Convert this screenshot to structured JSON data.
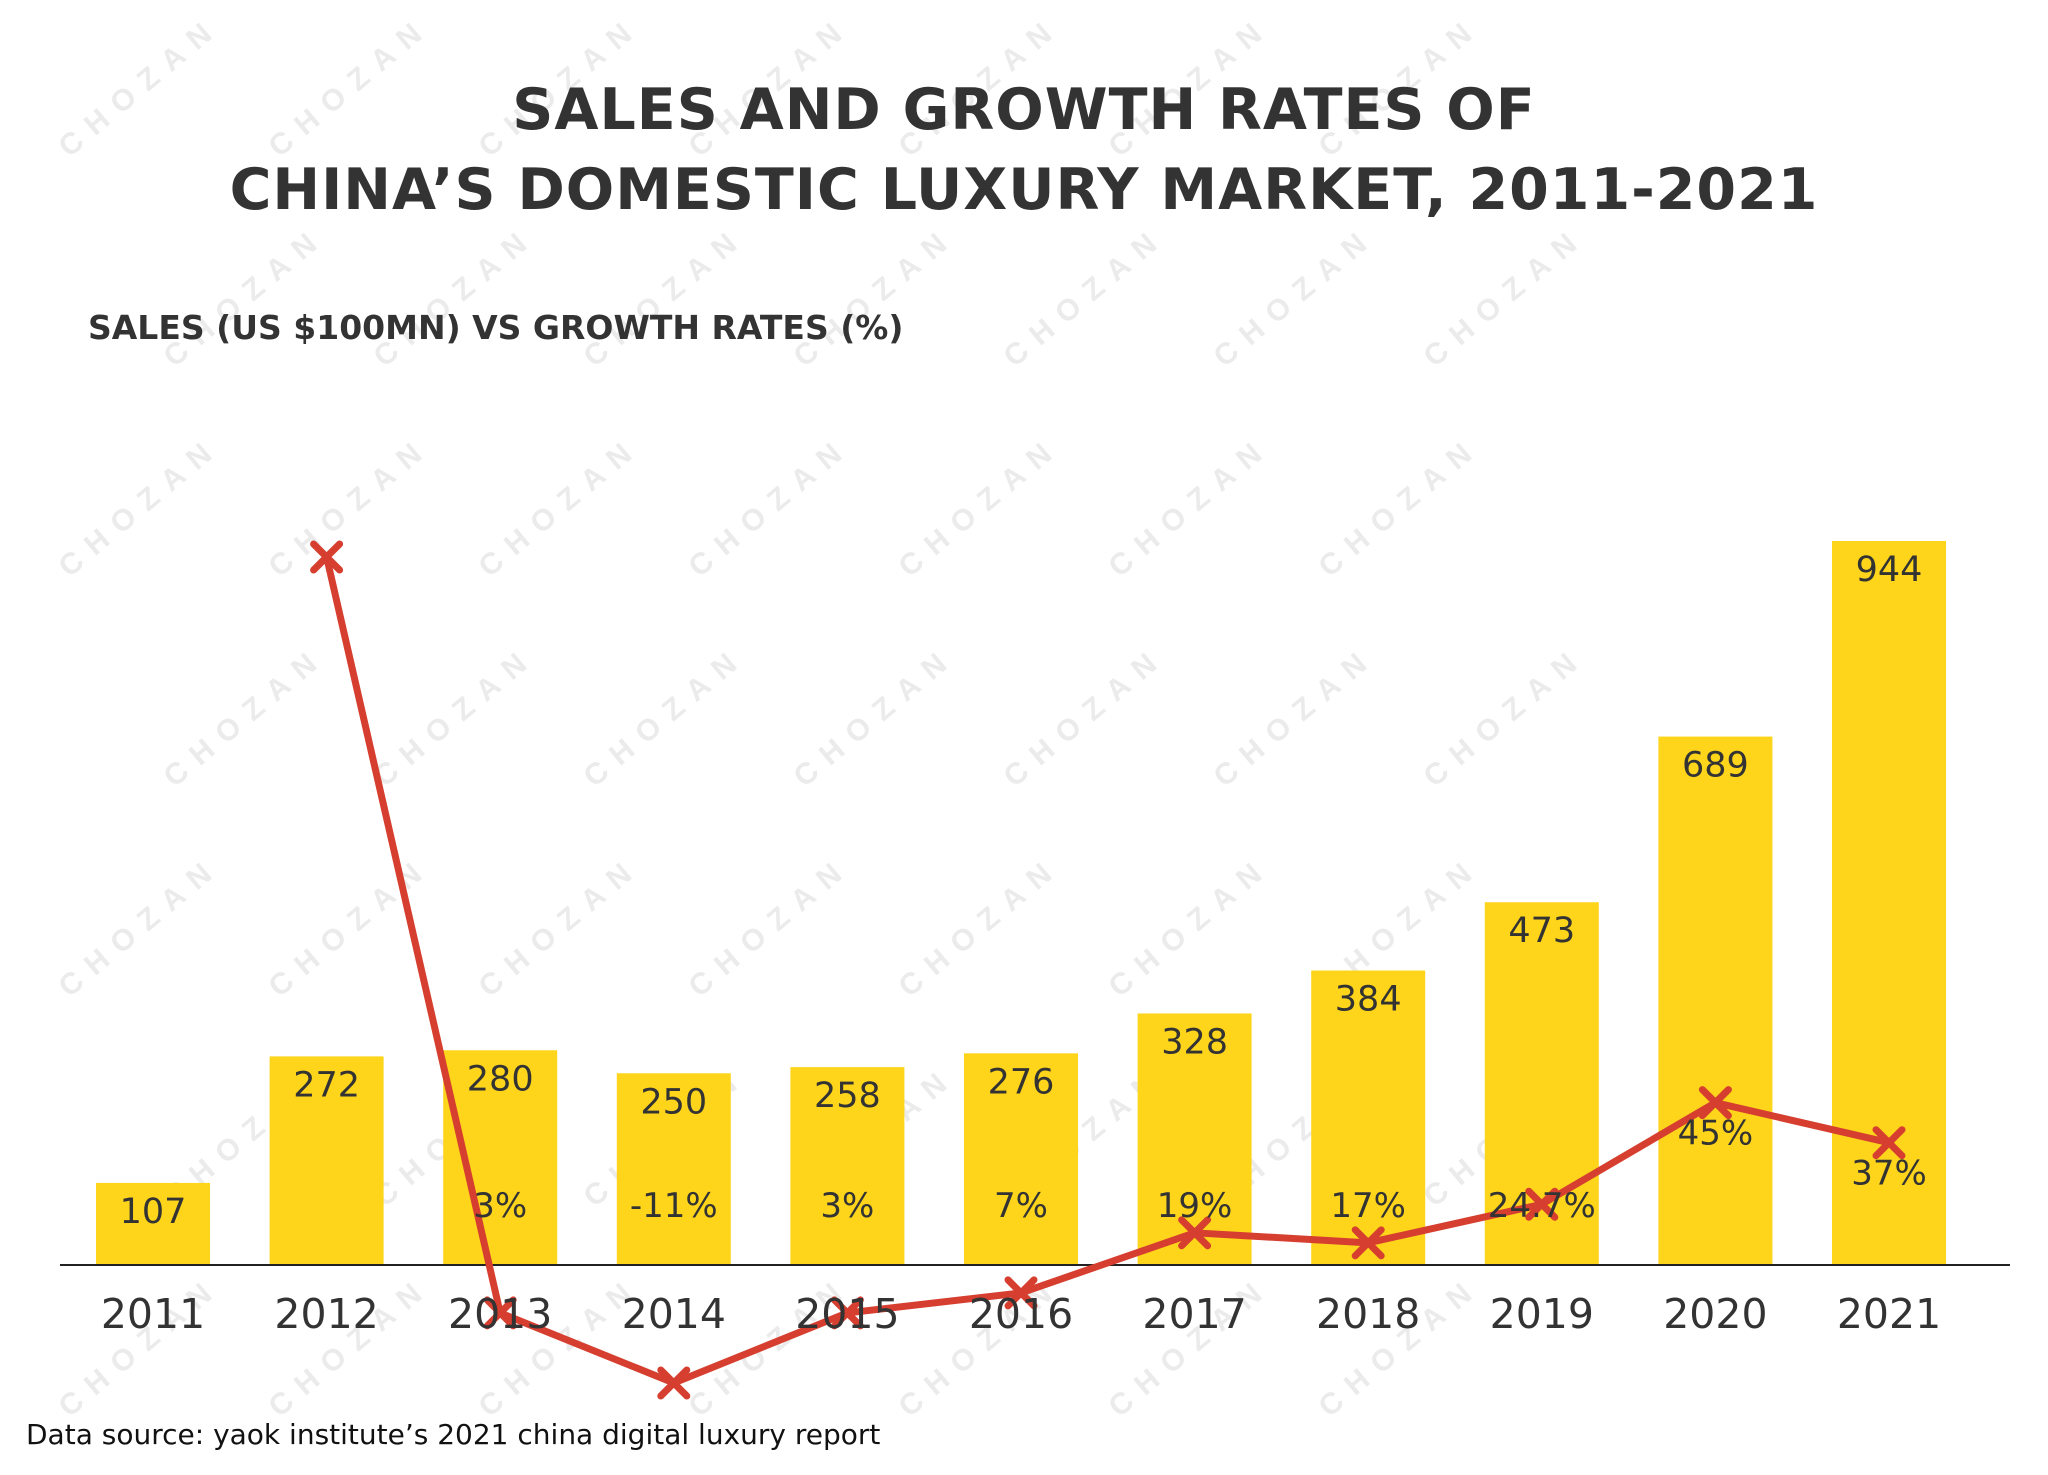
{
  "title_line1": "SALES AND GROWTH RATES OF",
  "title_line2": "CHINA’S DOMESTIC LUXURY MARKET, 2011-2021",
  "subtitle": "SALES (US $100MN) VS GROWTH RATES (%)",
  "source": "Data source: yaok institute’s 2021 china digital luxury report",
  "watermark_text": "CHOZAN",
  "colors": {
    "bar": "#fed51b",
    "line": "#d63f2f",
    "text": "#333333",
    "axis": "#222222"
  },
  "chart_data": {
    "type": "bar",
    "title": "SALES AND GROWTH RATES OF CHINA’S DOMESTIC LUXURY MARKET, 2011-2021",
    "subtitle": "SALES (US $100MN) VS GROWTH RATES (%)",
    "categories": [
      "2011",
      "2012",
      "2013",
      "2014",
      "2015",
      "2016",
      "2017",
      "2018",
      "2019",
      "2020",
      "2021"
    ],
    "series": [
      {
        "type": "bar",
        "values": [
          107,
          272,
          280,
          250,
          258,
          276,
          328,
          384,
          473,
          689,
          944
        ],
        "labels": [
          "107",
          "272",
          "280",
          "250",
          "258",
          "276",
          "328",
          "384",
          "473",
          "689",
          "944"
        ]
      },
      {
        "type": "line",
        "marker": "x",
        "values": [
          null,
          154,
          3,
          -11,
          3,
          7,
          19,
          17,
          24.7,
          45,
          37
        ],
        "labels": [
          "",
          "",
          "3%",
          "-11%",
          "3%",
          "7%",
          "19%",
          "17%",
          "24.7%",
          "45%",
          "37%"
        ]
      }
    ],
    "ylim_bars": [
      0,
      944
    ],
    "ylim_line": [
      -11,
      154
    ],
    "grid": false,
    "legend": "none"
  }
}
